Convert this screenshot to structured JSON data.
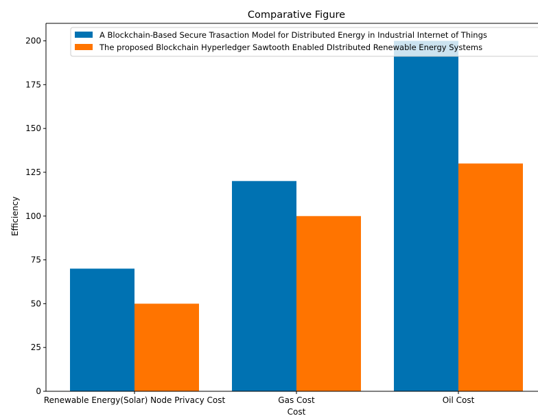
{
  "chart_data": {
    "type": "bar",
    "title": "Comparative Figure",
    "xlabel": "Cost",
    "ylabel": "Efficiency",
    "categories": [
      "Renewable Energy(Solar) Node Privacy Cost",
      "Gas Cost",
      "Oil Cost"
    ],
    "series": [
      {
        "name": "A Blockchain-Based Secure Trasaction Model for Distributed Energy in Industrial Internet of Things",
        "values": [
          70,
          120,
          200
        ]
      },
      {
        "name": "The proposed Blockchain Hyperledger Sawtooth Enabled DIstributed Renewable Energy Systems",
        "values": [
          50,
          100,
          130
        ]
      }
    ],
    "ylim": [
      0,
      210
    ],
    "yticks": [
      0,
      25,
      50,
      75,
      100,
      125,
      150,
      175,
      200
    ],
    "grid": false,
    "legend_position": "top-right",
    "colors": [
      "#0072b2",
      "#ff7400"
    ]
  }
}
